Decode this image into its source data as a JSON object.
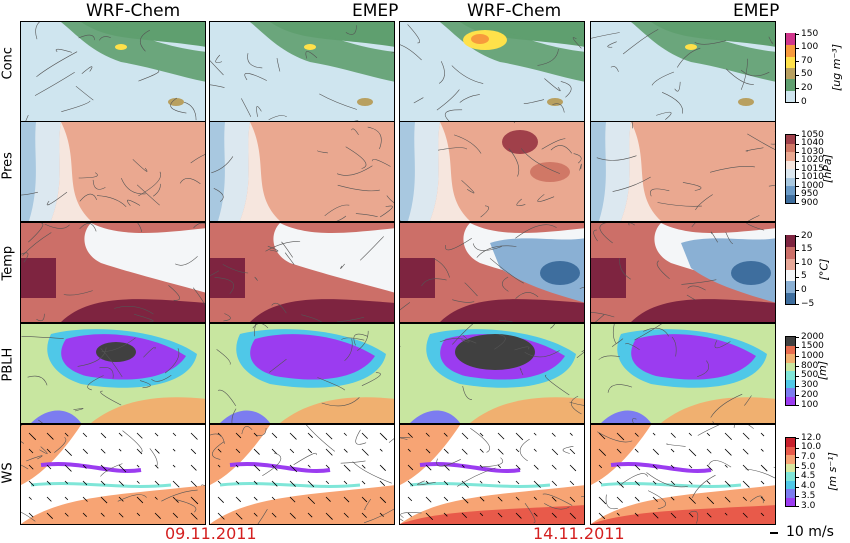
{
  "columns": [
    "WRF-Chem",
    "EMEP",
    "WRF-Chem",
    "EMEP"
  ],
  "rows": [
    {
      "label": "Conc",
      "unit": "[ug m⁻³]"
    },
    {
      "label": "Pres",
      "unit": "[hPa]"
    },
    {
      "label": "Temp",
      "unit": "[°C]"
    },
    {
      "label": "PBLH",
      "unit": "[m]"
    },
    {
      "label": "WS",
      "unit": "[m s⁻¹]"
    }
  ],
  "dates": [
    "09.11.2011",
    "14.11.2011"
  ],
  "wind_scale_label": "10 m/s",
  "chart_data": {
    "type": "heatmap",
    "description_dates": [
      "09.11.2011",
      "14.11.2011"
    ],
    "models": [
      "WRF-Chem",
      "EMEP"
    ],
    "variables": [
      {
        "name": "Conc",
        "unit": "[ug m⁻³]",
        "colorbar_ticks": [
          "0",
          "20",
          "50",
          "70",
          "100",
          "150"
        ],
        "colors": [
          "#cfe5ef",
          "#5f9f6f",
          "#b8a060",
          "#ffe14a",
          "#f79a3c",
          "#d0368c"
        ]
      },
      {
        "name": "Pres",
        "unit": "[hPa]",
        "colorbar_ticks": [
          "900",
          "950",
          "1000",
          "1010",
          "1015",
          "1020",
          "1030",
          "1040",
          "1050"
        ],
        "colors": [
          "#3e6e9e",
          "#6c9cc8",
          "#a8c8e0",
          "#dce8f0",
          "#f6e6de",
          "#eaa890",
          "#d07866",
          "#a0404a"
        ]
      },
      {
        "name": "Temp",
        "unit": "[°C]",
        "colorbar_ticks": [
          "−5",
          "0",
          "5",
          "10",
          "15",
          "20"
        ],
        "colors": [
          "#3e6e9e",
          "#8ab0d4",
          "#f4f6f8",
          "#e8a898",
          "#cc6f68",
          "#7e2440"
        ]
      },
      {
        "name": "PBLH",
        "unit": "[m]",
        "colorbar_ticks": [
          "100",
          "200",
          "300",
          "500",
          "800",
          "1000",
          "1500",
          "2000"
        ],
        "colors": [
          "#9b3cf0",
          "#7c7cf0",
          "#4fc8e8",
          "#7fe6d8",
          "#c8e6a0",
          "#f0b070",
          "#e86c4e",
          "#404040"
        ]
      },
      {
        "name": "WS",
        "unit": "[m s⁻¹]",
        "colorbar_ticks": [
          "3.0",
          "3.5",
          "4.0",
          "4.5",
          "5.0",
          "7.0",
          "10.0",
          "12.0"
        ],
        "colors": [
          "#9b3cf0",
          "#7c7cf0",
          "#4fc8e8",
          "#7fe6d8",
          "#d8e8a0",
          "#f7a474",
          "#e85a4a",
          "#c8202c"
        ]
      }
    ],
    "background_color": "#ffffff"
  }
}
